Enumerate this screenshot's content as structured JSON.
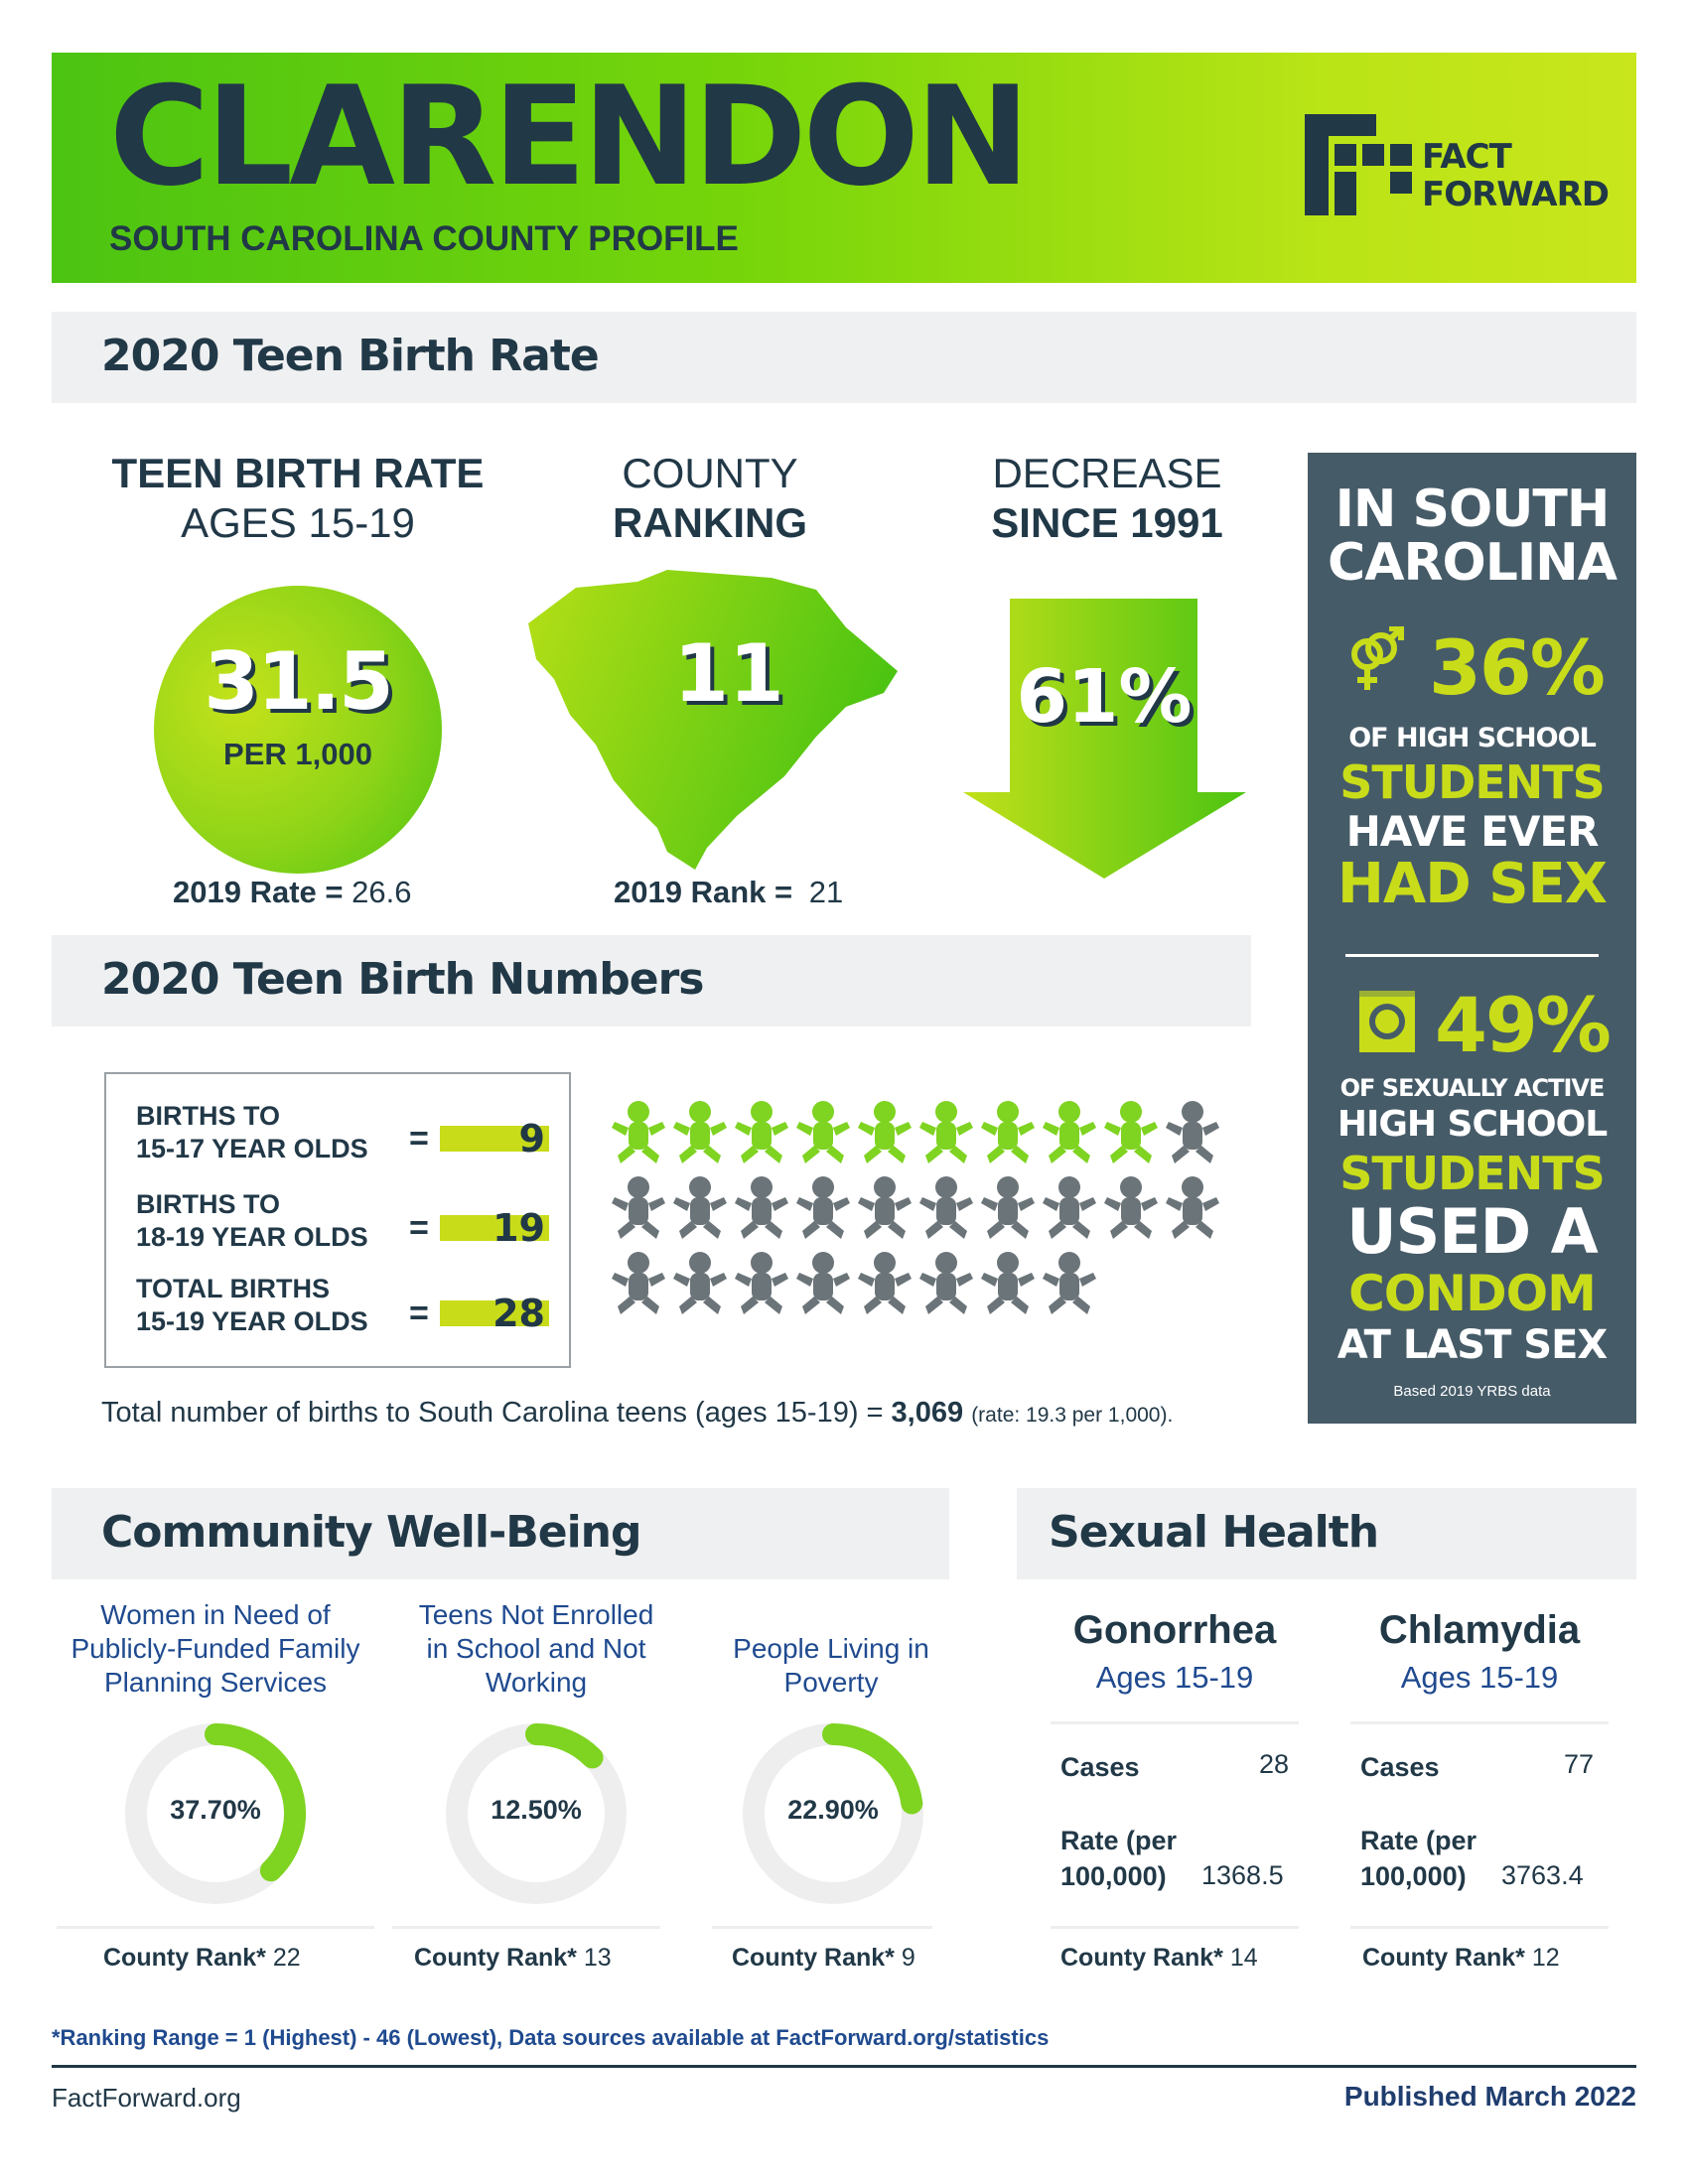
{
  "header": {
    "county": "CLARENDON",
    "subtitle": "SOUTH CAROLINA COUNTY PROFILE",
    "logo_line1": "FACT",
    "logo_line2": "FORWARD"
  },
  "teen_birth_rate": {
    "section_title": "2020 Teen Birth Rate",
    "rate_heading_1": "TEEN BIRTH RATE",
    "rate_heading_2": "AGES 15-19",
    "rate_value": "31.5",
    "rate_unit": "PER 1,000",
    "prev_rate_label": "2019 Rate =",
    "prev_rate_value": "26.6",
    "ranking_heading_1": "COUNTY",
    "ranking_heading_2": "RANKING",
    "ranking_value": "11",
    "prev_rank_label": "2019 Rank =",
    "prev_rank_value": "21",
    "decrease_heading_1": "DECREASE",
    "decrease_heading_2": "SINCE 1991",
    "decrease_value": "61%"
  },
  "sc_panel": {
    "title_1": "IN SOUTH",
    "title_2": "CAROLINA",
    "stat1_value": "36%",
    "stat1_line1": "OF HIGH SCHOOL",
    "stat1_line2": "STUDENTS",
    "stat1_line3": "HAVE EVER",
    "stat1_line4": "HAD SEX",
    "stat2_value": "49%",
    "stat2_line1": "OF SEXUALLY ACTIVE",
    "stat2_line2": "HIGH SCHOOL",
    "stat2_line3": "STUDENTS",
    "stat2_line4": "USED A",
    "stat2_line5": "CONDOM",
    "stat2_line6": "AT LAST SEX",
    "source": "Based 2019 YRBS data",
    "colors": {
      "panel": "#465b68",
      "accent": "#c8dc1a"
    }
  },
  "teen_birth_numbers": {
    "section_title": "2020 Teen Birth Numbers",
    "rows": [
      {
        "label_1": "BIRTHS TO",
        "label_2": "15-17 YEAR OLDS",
        "eq": "=",
        "value": "9"
      },
      {
        "label_1": "BIRTHS TO",
        "label_2": "18-19 YEAR OLDS",
        "eq": "=",
        "value": "19"
      },
      {
        "label_1": "TOTAL BIRTHS",
        "label_2": "15-19 YEAR OLDS",
        "eq": "=",
        "value": "28"
      }
    ],
    "pictogram": {
      "highlighted": 9,
      "total": 28,
      "icon": "baby-icon",
      "highlight_color": "#7fd321",
      "base_color": "#6b7479"
    },
    "state_total_text": "Total number of births to South Carolina teens (ages 15-19) = ",
    "state_total_value": "3,069",
    "state_total_rate": "(rate: 19.3 per 1,000)."
  },
  "community": {
    "section_title": "Community Well-Being",
    "items": [
      {
        "label_1": "Women in Need of",
        "label_2": "Publicly-Funded Family",
        "label_3": "Planning Services",
        "percent_text": "37.70%",
        "percent": 37.7,
        "rank_label": "County Rank*",
        "rank": "22"
      },
      {
        "label_1": "Teens Not Enrolled",
        "label_2": "in School and Not",
        "label_3": "Working",
        "percent_text": "12.50%",
        "percent": 12.5,
        "rank_label": "County Rank*",
        "rank": "13"
      },
      {
        "label_1": "People Living in",
        "label_2": "Poverty",
        "label_3": "",
        "percent_text": "22.90%",
        "percent": 22.9,
        "rank_label": "County Rank*",
        "rank": "9"
      }
    ]
  },
  "sexual_health": {
    "section_title": "Sexual Health",
    "items": [
      {
        "title": "Gonorrhea",
        "subtitle": "Ages 15-19",
        "cases_label": "Cases",
        "cases": "28",
        "rate_label_1": "Rate (per",
        "rate_label_2": "100,000)",
        "rate": "1368.5",
        "rank_label": "County Rank*",
        "rank": "14"
      },
      {
        "title": "Chlamydia",
        "subtitle": "Ages 15-19",
        "cases_label": "Cases",
        "cases": "77",
        "rate_label_1": "Rate (per",
        "rate_label_2": "100,000)",
        "rate": "3763.4",
        "rank_label": "County Rank*",
        "rank": "12"
      }
    ]
  },
  "footer": {
    "ranking_note": "*Ranking Range = 1 (Highest) - 46 (Lowest), Data sources available at FactForward.org/statistics",
    "site": "FactForward.org",
    "published": "Published March 2022"
  }
}
